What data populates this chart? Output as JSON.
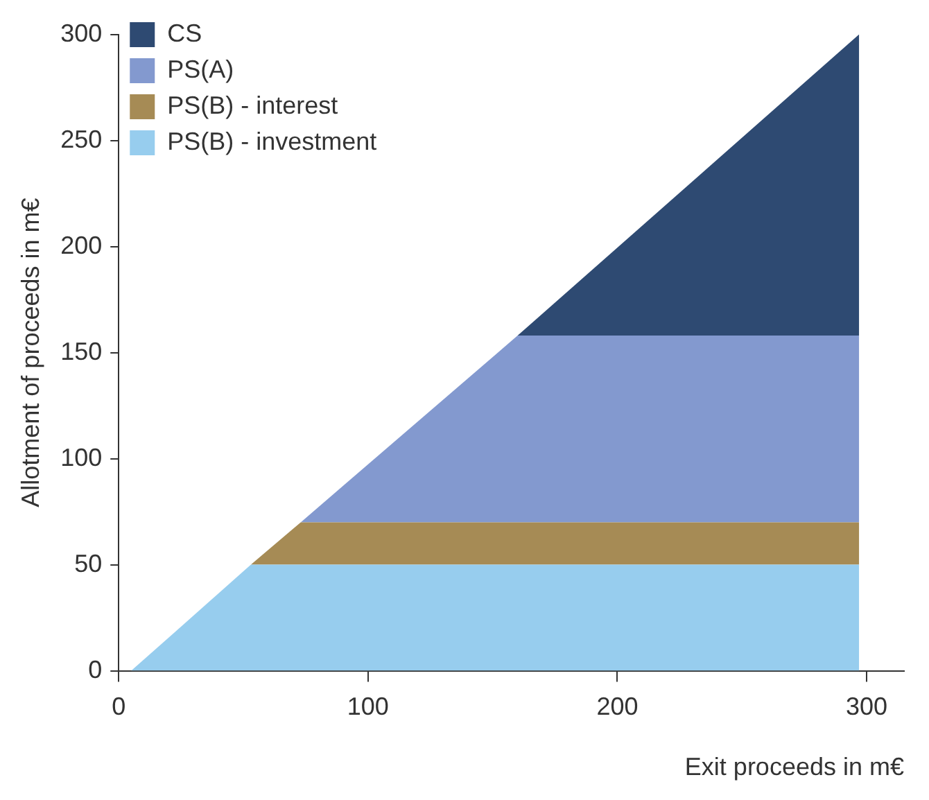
{
  "chart_data": {
    "type": "area",
    "stacked": true,
    "xlabel": "Exit proceeds in m€",
    "ylabel": "Allotment of proceeds in m€",
    "x": [
      5,
      53,
      73,
      160,
      297
    ],
    "series": [
      {
        "name": "PS(B) - investment",
        "color": "#97cdee",
        "values": [
          0,
          50,
          50,
          50,
          50
        ]
      },
      {
        "name": "PS(B) - interest",
        "color": "#a68b55",
        "values": [
          0,
          0,
          20,
          20,
          20
        ]
      },
      {
        "name": "PS(A)",
        "color": "#8399cf",
        "values": [
          0,
          0,
          0,
          88,
          88
        ]
      },
      {
        "name": "CS",
        "color": "#2e4a72",
        "values": [
          0,
          0,
          0,
          0,
          142
        ]
      }
    ],
    "xlim": [
      0,
      315
    ],
    "xticks": [
      0,
      100,
      200,
      300
    ],
    "ylim": [
      0,
      300
    ],
    "yticks": [
      0,
      50,
      100,
      150,
      200,
      250,
      300
    ],
    "grid": false,
    "legend": "top left"
  }
}
